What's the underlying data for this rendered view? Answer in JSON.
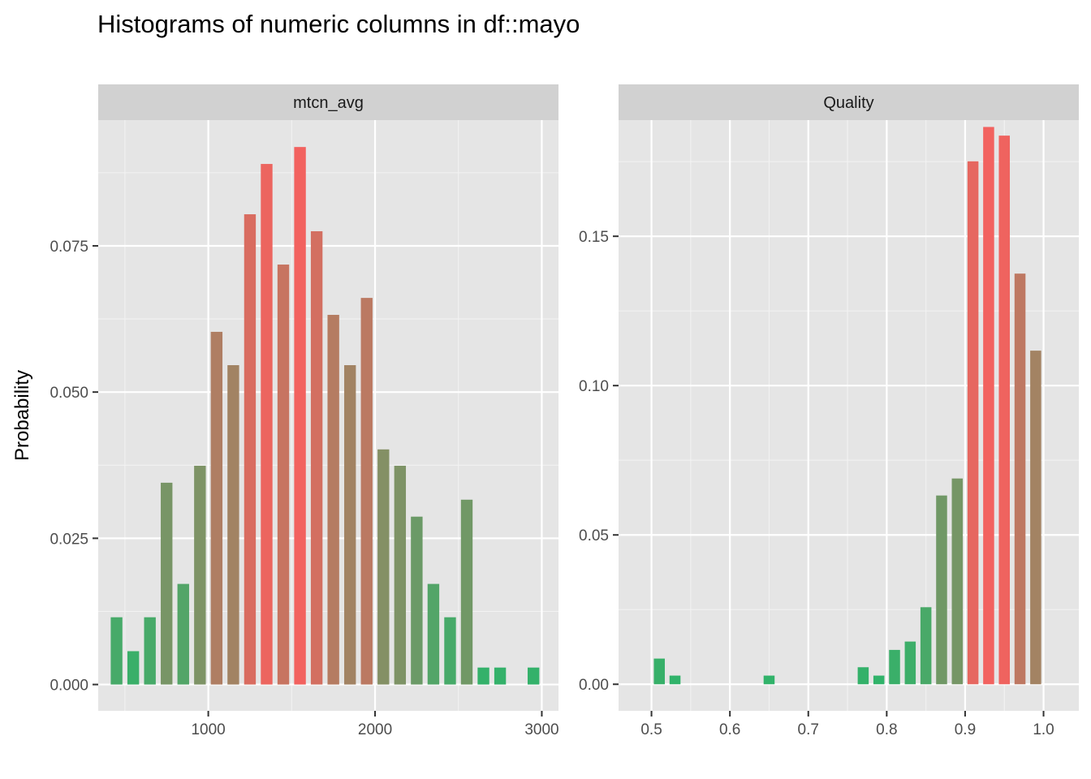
{
  "title": "Histograms of numeric columns in df::mayo",
  "ylabel": "Probability",
  "colors": {
    "panel_bg": "#E5E5E5",
    "strip_bg": "#D1D1D1",
    "grid_major": "#FFFFFF",
    "grid_minor": "#F2F2F2",
    "low": "#2EB46A",
    "high": "#F2625F"
  },
  "chart_data": [
    {
      "type": "bar",
      "facet": "mtcn_avg",
      "xlim": [
        340,
        3100
      ],
      "ylim": [
        -0.0045,
        0.0965
      ],
      "xticks": [
        1000,
        2000,
        3000
      ],
      "xtick_labels": [
        "1000",
        "2000",
        "3000"
      ],
      "yticks": [
        0,
        0.025,
        0.05,
        0.075
      ],
      "ytick_labels": [
        "0.000",
        "0.025",
        "0.050",
        "0.075"
      ],
      "bin_width": 100,
      "x": [
        450,
        550,
        650,
        750,
        850,
        950,
        1050,
        1150,
        1250,
        1350,
        1450,
        1550,
        1650,
        1750,
        1850,
        1950,
        2050,
        2150,
        2250,
        2350,
        2450,
        2550,
        2650,
        2750,
        2950
      ],
      "values": [
        0.0115,
        0.0057,
        0.0115,
        0.0345,
        0.0172,
        0.0374,
        0.0603,
        0.0546,
        0.0804,
        0.089,
        0.0718,
        0.0919,
        0.0775,
        0.0632,
        0.0546,
        0.0661,
        0.0402,
        0.0374,
        0.0287,
        0.0172,
        0.0115,
        0.0316,
        0.0029,
        0.0029,
        0.0029
      ]
    },
    {
      "type": "bar",
      "facet": "Quality",
      "xlim": [
        0.458,
        1.045
      ],
      "ylim": [
        -0.0089,
        0.1889
      ],
      "xticks": [
        0.5,
        0.6,
        0.7,
        0.8,
        0.9,
        1.0
      ],
      "xtick_labels": [
        "0.5",
        "0.6",
        "0.7",
        "0.8",
        "0.9",
        "1.0"
      ],
      "yticks": [
        0,
        0.05,
        0.1,
        0.15
      ],
      "ytick_labels": [
        "0.00",
        "0.05",
        "0.10",
        "0.15"
      ],
      "bin_width": 0.02,
      "x": [
        0.51,
        0.53,
        0.65,
        0.77,
        0.79,
        0.81,
        0.83,
        0.85,
        0.87,
        0.89,
        0.91,
        0.93,
        0.95,
        0.97,
        0.99
      ],
      "values": [
        0.0086,
        0.0029,
        0.0029,
        0.0057,
        0.0029,
        0.0115,
        0.0143,
        0.0258,
        0.0632,
        0.0689,
        0.1751,
        0.1866,
        0.1837,
        0.1375,
        0.1117
      ]
    }
  ]
}
